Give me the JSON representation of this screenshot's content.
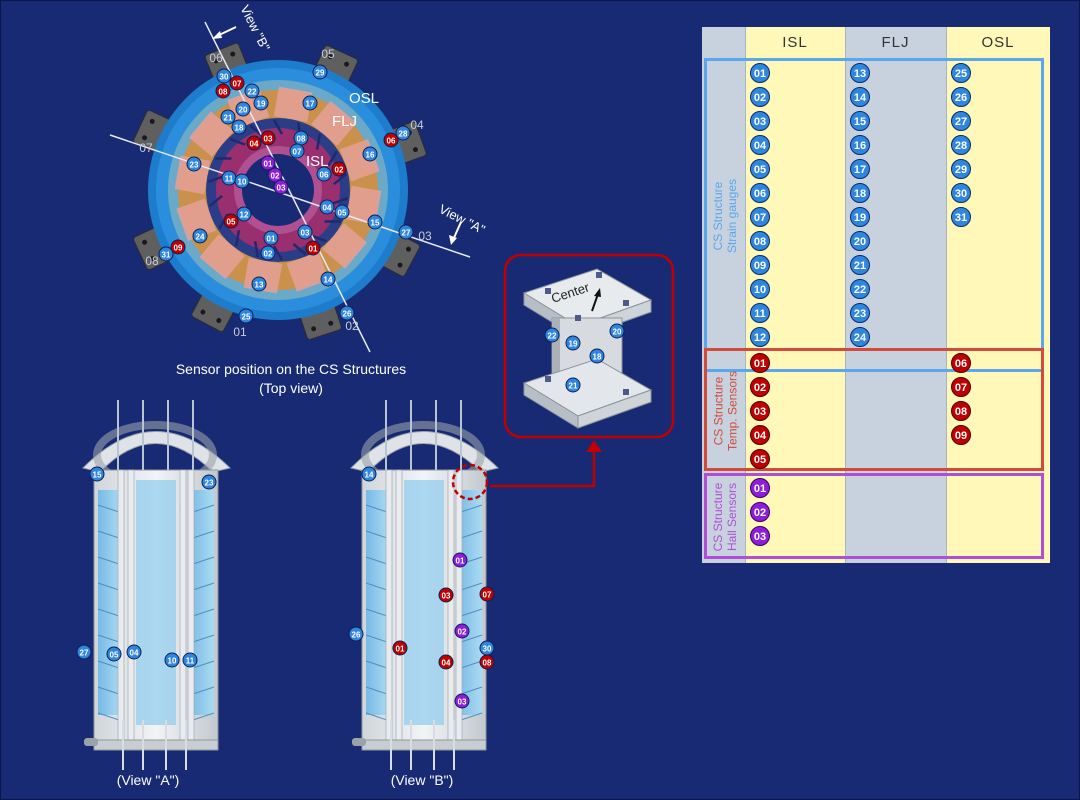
{
  "top_view": {
    "ring_labels": {
      "osl": "OSL",
      "flj": "FLJ",
      "isl": "ISL"
    },
    "view_a_label": "View \"A\"",
    "view_b_label": "View \"B\"",
    "sector_numbers": [
      "01",
      "02",
      "03",
      "04",
      "05",
      "06",
      "07",
      "08"
    ],
    "caption_line1": "Sensor position on the CS Structures",
    "caption_line2": "(Top view)",
    "blue_badges": [
      "30",
      "29",
      "22",
      "19",
      "20",
      "21",
      "18",
      "17",
      "28",
      "08",
      "07",
      "16",
      "23",
      "11",
      "10",
      "06",
      "04",
      "05",
      "12",
      "15",
      "24",
      "01",
      "02",
      "03",
      "27",
      "31",
      "13",
      "14",
      "25",
      "26",
      "09"
    ],
    "red_badges": [
      "07",
      "08",
      "04",
      "03",
      "06",
      "02",
      "05",
      "01",
      "09"
    ],
    "purple_badges": [
      "01",
      "02",
      "03"
    ]
  },
  "detail": {
    "center_label": "Center",
    "badges": [
      "22",
      "20",
      "19",
      "18",
      "21"
    ]
  },
  "view_a": {
    "caption": "(View \"A\")",
    "blue_badges": [
      "15",
      "23",
      "27",
      "05",
      "04",
      "10",
      "11"
    ]
  },
  "view_b": {
    "caption": "(View \"B\")",
    "blue_badges": [
      "14",
      "26",
      "30"
    ],
    "red_badges": [
      "03",
      "07",
      "01",
      "04",
      "08"
    ],
    "purple_badges": [
      "01",
      "02",
      "03"
    ]
  },
  "table": {
    "headers": [
      "ISL",
      "FLJ",
      "OSL"
    ],
    "groups": [
      {
        "label_line1": "CS Structure",
        "label_line2": "Strain gauges",
        "color": "#5aa7ee",
        "isl": [
          "01",
          "02",
          "03",
          "04",
          "05",
          "06",
          "07",
          "08",
          "09",
          "10",
          "11",
          "12"
        ],
        "flj": [
          "13",
          "14",
          "15",
          "16",
          "17",
          "18",
          "19",
          "20",
          "21",
          "22",
          "23",
          "24"
        ],
        "osl": [
          "25",
          "26",
          "27",
          "28",
          "29",
          "30",
          "31"
        ]
      },
      {
        "label_line1": "CS Structure",
        "label_line2": "Temp. Sensors",
        "color": "#d24a3c",
        "isl": [
          "01",
          "02",
          "03",
          "04",
          "05"
        ],
        "flj": [],
        "osl": [
          "06",
          "07",
          "08",
          "09"
        ]
      },
      {
        "label_line1": "CS Structure",
        "label_line2": "Hall Sensors",
        "color": "#b04fd6",
        "isl": [
          "01",
          "02",
          "03"
        ],
        "flj": [],
        "osl": []
      }
    ]
  },
  "colors": {
    "background": "#172a73",
    "blue": "#2f86df",
    "red": "#c00000",
    "purple": "#8f1cd8",
    "osl_ring": "#2a7fd4",
    "flj_ring": "#c9914b",
    "isl_ring": "#9a2f6f",
    "table_yellow": "#fff8b8",
    "table_gray": "#c7d2de"
  }
}
